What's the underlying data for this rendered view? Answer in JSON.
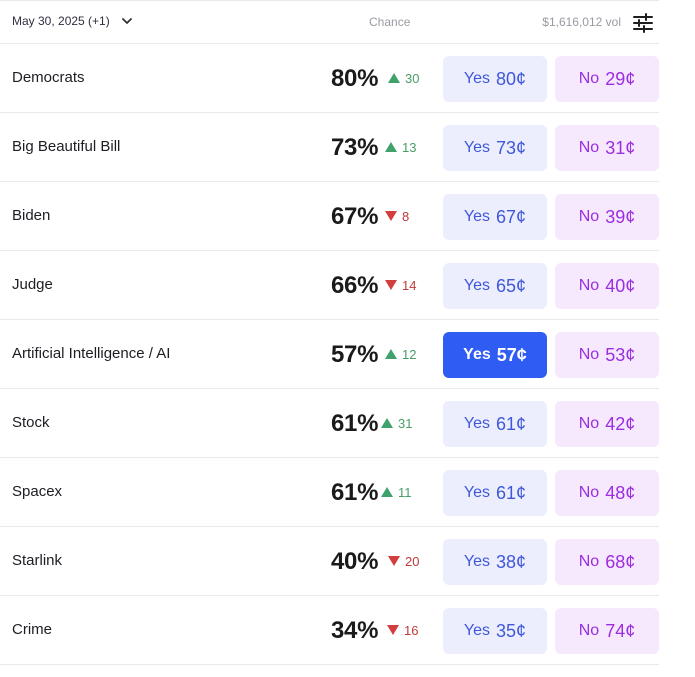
{
  "header": {
    "date": "May 30, 2025 (+1)",
    "chance_label": "Chance",
    "volume": "$1,616,012 vol"
  },
  "markets": [
    {
      "name": "Democrats",
      "chance": "80%",
      "delta": "30",
      "direction": "up",
      "yes_label": "Yes",
      "yes_price": "80¢",
      "no_label": "No",
      "no_price": "29¢",
      "yes_active": false
    },
    {
      "name": "Big Beautiful Bill",
      "chance": "73%",
      "delta": "13",
      "direction": "up",
      "yes_label": "Yes",
      "yes_price": "73¢",
      "no_label": "No",
      "no_price": "31¢",
      "yes_active": false
    },
    {
      "name": "Biden",
      "chance": "67%",
      "delta": "8",
      "direction": "down",
      "yes_label": "Yes",
      "yes_price": "67¢",
      "no_label": "No",
      "no_price": "39¢",
      "yes_active": false
    },
    {
      "name": "Judge",
      "chance": "66%",
      "delta": "14",
      "direction": "down",
      "yes_label": "Yes",
      "yes_price": "65¢",
      "no_label": "No",
      "no_price": "40¢",
      "yes_active": false
    },
    {
      "name": "Artificial Intelligence / AI",
      "chance": "57%",
      "delta": "12",
      "direction": "up",
      "yes_label": "Yes",
      "yes_price": "57¢",
      "no_label": "No",
      "no_price": "53¢",
      "yes_active": true
    },
    {
      "name": "Stock",
      "chance": "61%",
      "delta": "31",
      "direction": "up",
      "yes_label": "Yes",
      "yes_price": "61¢",
      "no_label": "No",
      "no_price": "42¢",
      "yes_active": false
    },
    {
      "name": "Spacex",
      "chance": "61%",
      "delta": "11",
      "direction": "up",
      "yes_label": "Yes",
      "yes_price": "61¢",
      "no_label": "No",
      "no_price": "48¢",
      "yes_active": false
    },
    {
      "name": "Starlink",
      "chance": "40%",
      "delta": "20",
      "direction": "down",
      "yes_label": "Yes",
      "yes_price": "38¢",
      "no_label": "No",
      "no_price": "68¢",
      "yes_active": false
    },
    {
      "name": "Crime",
      "chance": "34%",
      "delta": "16",
      "direction": "down",
      "yes_label": "Yes",
      "yes_price": "35¢",
      "no_label": "No",
      "no_price": "74¢",
      "yes_active": false
    }
  ],
  "icons": {
    "date_dropdown": "chevron-down-icon",
    "filter": "sliders-icon",
    "up": "triangle-up-icon",
    "down": "triangle-down-icon"
  },
  "colors": {
    "up": "#3fa26a",
    "down": "#d23d3d",
    "yes_bg": "#eceefe",
    "yes_text": "#3f58da",
    "yes_active_bg": "#2f5cf2",
    "no_bg": "#f6e8fd",
    "no_text": "#9b2ee0"
  }
}
